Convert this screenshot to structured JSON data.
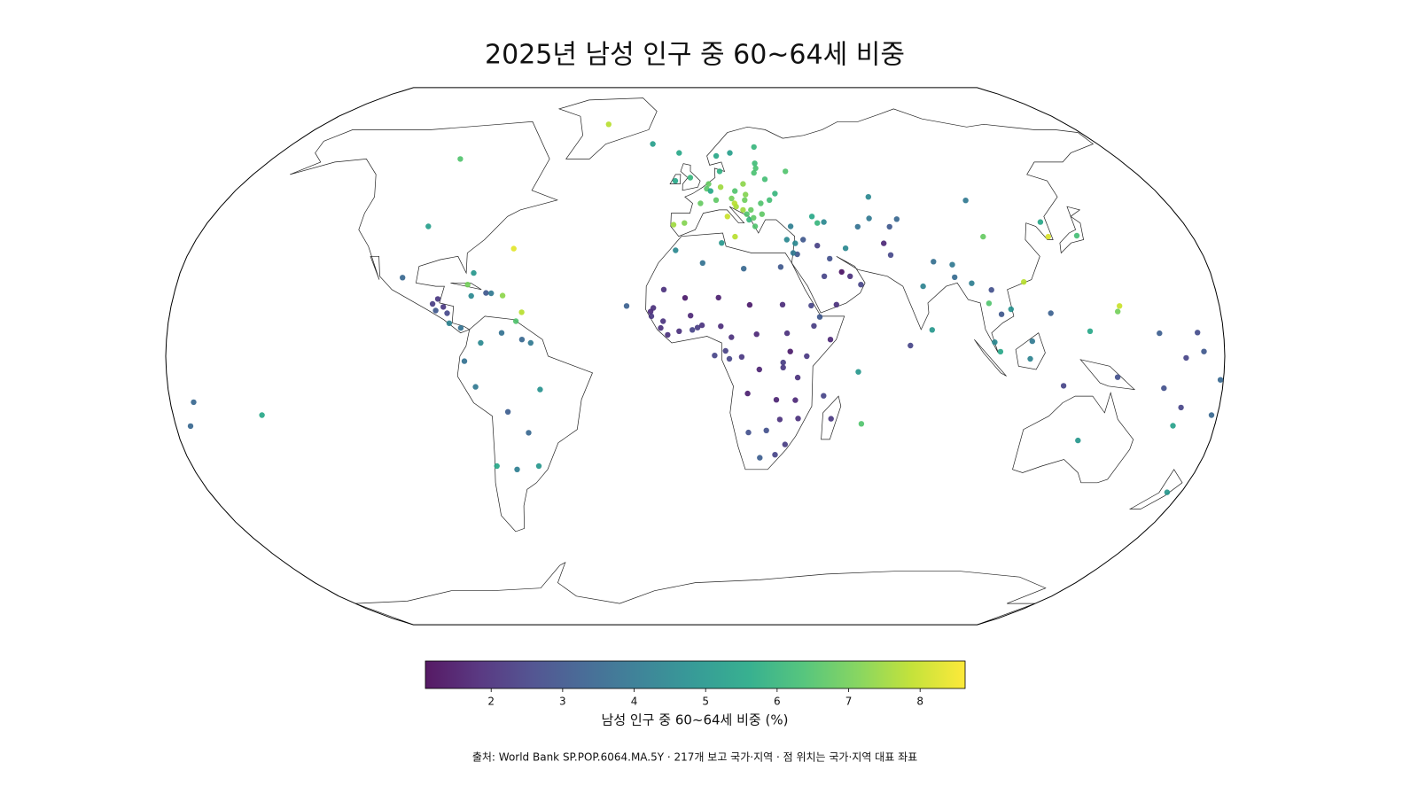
{
  "chart_data": {
    "type": "geo-scatter",
    "projection": "robinson",
    "title": "2025년 남성 인구 중 60~64세 비중",
    "source": "출처: World Bank SP.POP.6064.MA.5Y · 217개 보고 국가·지역 · 점 위치는 국가·지역 대표 좌표",
    "colorbar_label": "남성 인구 중 60~64세 비중 (%)",
    "colormap": "viridis",
    "colorbar_lim": [
      1.08,
      8.63
    ],
    "colorbar_ticks": [
      2,
      3,
      4,
      5,
      6,
      7,
      8
    ],
    "x": [
      12,
      10,
      2,
      -4,
      -8,
      -2,
      -8,
      5.3,
      4.5,
      8,
      14,
      19,
      15.5,
      19.5,
      19,
      15.5,
      15,
      21,
      18,
      25,
      25,
      22,
      20,
      21.7,
      19.3,
      31,
      28,
      24,
      25,
      25,
      26,
      15,
      9,
      10,
      -19,
      -42,
      -7,
      28.5,
      33,
      14.4,
      6,
      43.5,
      45,
      47.5,
      35,
      37,
      -100,
      -98,
      -64.8,
      -102,
      -90.3,
      -86.5,
      -89,
      -85,
      -84,
      -80,
      -88.7,
      -79,
      -77.3,
      -72.3,
      -70.5,
      -66.5,
      -77.4,
      -59.5,
      -61.3,
      -73,
      -66,
      -59,
      -56,
      -78.5,
      -75,
      -53,
      -64.5,
      -58,
      -71,
      -64,
      -56,
      -7,
      2.6,
      9.5,
      17,
      30,
      -10.9,
      -3.5,
      8,
      18.7,
      30,
      -14.4,
      -15.3,
      -15,
      -11,
      -11.8,
      -9.4,
      -5.5,
      -1.6,
      -1,
      0.8,
      2.3,
      8.7,
      12.3,
      20.9,
      31.3,
      40.5,
      39.8,
      42.6,
      46,
      37.9,
      32.3,
      29.9,
      29.9,
      34.9,
      21.8,
      15.8,
      11.6,
      10.3,
      17.9,
      27.8,
      34.3,
      35.5,
      29.2,
      24.7,
      18.5,
      22.9,
      28.2,
      31.5,
      46.9,
      43.9,
      57.5,
      55.5,
      -23.6,
      6.6,
      45,
      48.5,
      57.5,
      54,
      51.2,
      47.5,
      43.7,
      53.7,
      38.9,
      36.2,
      34.8,
      35.9,
      67.7,
      69.3,
      79,
      84,
      90.4,
      90.4,
      80.8,
      73.2,
      66.9,
      64.6,
      59.6,
      74.8,
      71.3,
      103.8,
      104.2,
      127.5,
      127.8,
      138.3,
      96,
      101,
      102.5,
      108.3,
      104.9,
      101.9,
      103.8,
      113.9,
      121.8,
      114.7,
      125.7,
      143.9,
      114.2,
      144.8,
      145.7,
      133.8,
      174.9,
      178,
      160,
      166.9,
      -172,
      -175,
      173,
      171.2,
      158.2,
      134.6,
      166.9,
      179,
      -149.4,
      165.6
    ],
    "y": [
      42,
      51,
      46,
      40,
      39.5,
      54,
      53,
      52,
      50.5,
      47,
      47.5,
      52,
      49.8,
      48.7,
      47,
      45,
      46,
      44,
      44,
      46,
      42.7,
      39,
      41,
      41.6,
      42.7,
      49,
      53.5,
      55.5,
      57,
      58.6,
      64,
      62,
      61,
      56,
      65,
      72,
      62,
      47,
      35,
      35.9,
      49.8,
      42,
      40,
      40.3,
      39,
      56,
      60,
      39,
      32.3,
      23.6,
      15.7,
      14.8,
      13.7,
      12.9,
      9.9,
      8.5,
      17.2,
      21.5,
      18.1,
      19,
      18.9,
      18.2,
      25,
      13.2,
      10.5,
      4,
      7,
      5,
      4,
      -1.5,
      -9.2,
      -10,
      -16.7,
      -23,
      -33,
      -34,
      -33,
      31.8,
      28,
      34,
      26.3,
      26.8,
      20,
      17.5,
      17.6,
      15.4,
      15.5,
      14.5,
      13.4,
      12,
      10.5,
      8.5,
      6.4,
      7.5,
      12.2,
      7.9,
      8.6,
      9.3,
      9,
      5.7,
      6.6,
      6.9,
      9.1,
      15.2,
      11.8,
      5,
      0,
      1.4,
      -1.9,
      -3.4,
      -6.4,
      -4,
      -0.2,
      -0.8,
      1.6,
      -11.2,
      -13.1,
      -13.2,
      -18.7,
      -19,
      -22.3,
      -22.9,
      -30.5,
      -29.6,
      -26.5,
      -18.8,
      -11.9,
      -20.3,
      -4.7,
      15.1,
      0.2,
      24,
      15.5,
      21.5,
      24,
      25.3,
      29.3,
      33.2,
      32.4,
      35,
      30.6,
      31,
      33.9,
      33.9,
      30.4,
      21,
      28.4,
      23.7,
      27.5,
      7.9,
      3.2,
      48,
      41.4,
      38.9,
      41.2,
      38.9,
      46.9,
      35.9,
      40.3,
      35.9,
      36.2,
      21.9,
      15.9,
      19.9,
      14.1,
      12.6,
      4.2,
      1.35,
      -0.8,
      12.9,
      4.5,
      -8.9,
      -6.3,
      22.3,
      13.4,
      15.1,
      -25.3,
      -40.9,
      -17.7,
      -9.6,
      -15.4,
      -13.8,
      -21,
      1.4,
      7.1,
      6.9,
      7.5,
      -0.5,
      -7.1,
      -17.7,
      -20.9
    ],
    "values": [
      8,
      7.5,
      6.8,
      7.2,
      7.5,
      6,
      5.5,
      6.8,
      6.6,
      6.7,
      7,
      7.3,
      6.5,
      7.2,
      6.9,
      7.6,
      7.8,
      6.8,
      7.5,
      6.5,
      6.7,
      6.5,
      6,
      6.7,
      6.5,
      6,
      6.3,
      6.4,
      6.4,
      6.2,
      6,
      5.2,
      5.5,
      5.8,
      5.2,
      7.8,
      5.5,
      6.3,
      4.5,
      7.8,
      5.5,
      5.5,
      6,
      4.5,
      4.2,
      6.5,
      6.5,
      5.2,
      8.3,
      3.5,
      2.3,
      2.2,
      3,
      2.6,
      4.3,
      3.8,
      2.2,
      7,
      4.5,
      3,
      4,
      7.3,
      5,
      7.8,
      6.5,
      4.5,
      3.8,
      3.5,
      4,
      3.8,
      4,
      4.8,
      3.2,
      3.5,
      5.5,
      4.2,
      5,
      4.5,
      3.8,
      5,
      3.5,
      3,
      2,
      1.5,
      1.6,
      1.5,
      1.9,
      2,
      1.9,
      2.2,
      2.1,
      2,
      2,
      2,
      1.8,
      2.5,
      2.3,
      2.1,
      1.9,
      2,
      1.8,
      2,
      2.3,
      2.5,
      3,
      1.8,
      2.2,
      1.5,
      2.3,
      2.2,
      2,
      1.7,
      2.2,
      2.5,
      2.4,
      1.6,
      1.7,
      1.8,
      2,
      2,
      2.8,
      2.8,
      3.2,
      2.5,
      2.3,
      2.2,
      2.5,
      6.5,
      5,
      3.3,
      2.5,
      2.5,
      2,
      2.5,
      2,
      1.3,
      2.8,
      2.4,
      4.5,
      3,
      3,
      4,
      4.5,
      1.8,
      2.6,
      4.3,
      3.7,
      3.6,
      4,
      5,
      2.5,
      4.5,
      4,
      3.8,
      3.5,
      3,
      4,
      6.8,
      5.5,
      8.2,
      6.3,
      4.2,
      6.5,
      2.8,
      4.8,
      3,
      4.5,
      5.5,
      4.3,
      3.3,
      4,
      2.5,
      2.8,
      7.8,
      7,
      8,
      5,
      5,
      3.5,
      2.8,
      2.5,
      3.5,
      3.5,
      3,
      2.7,
      3.2,
      5.5,
      2.5,
      3.5,
      5.5,
      5.3
    ]
  }
}
